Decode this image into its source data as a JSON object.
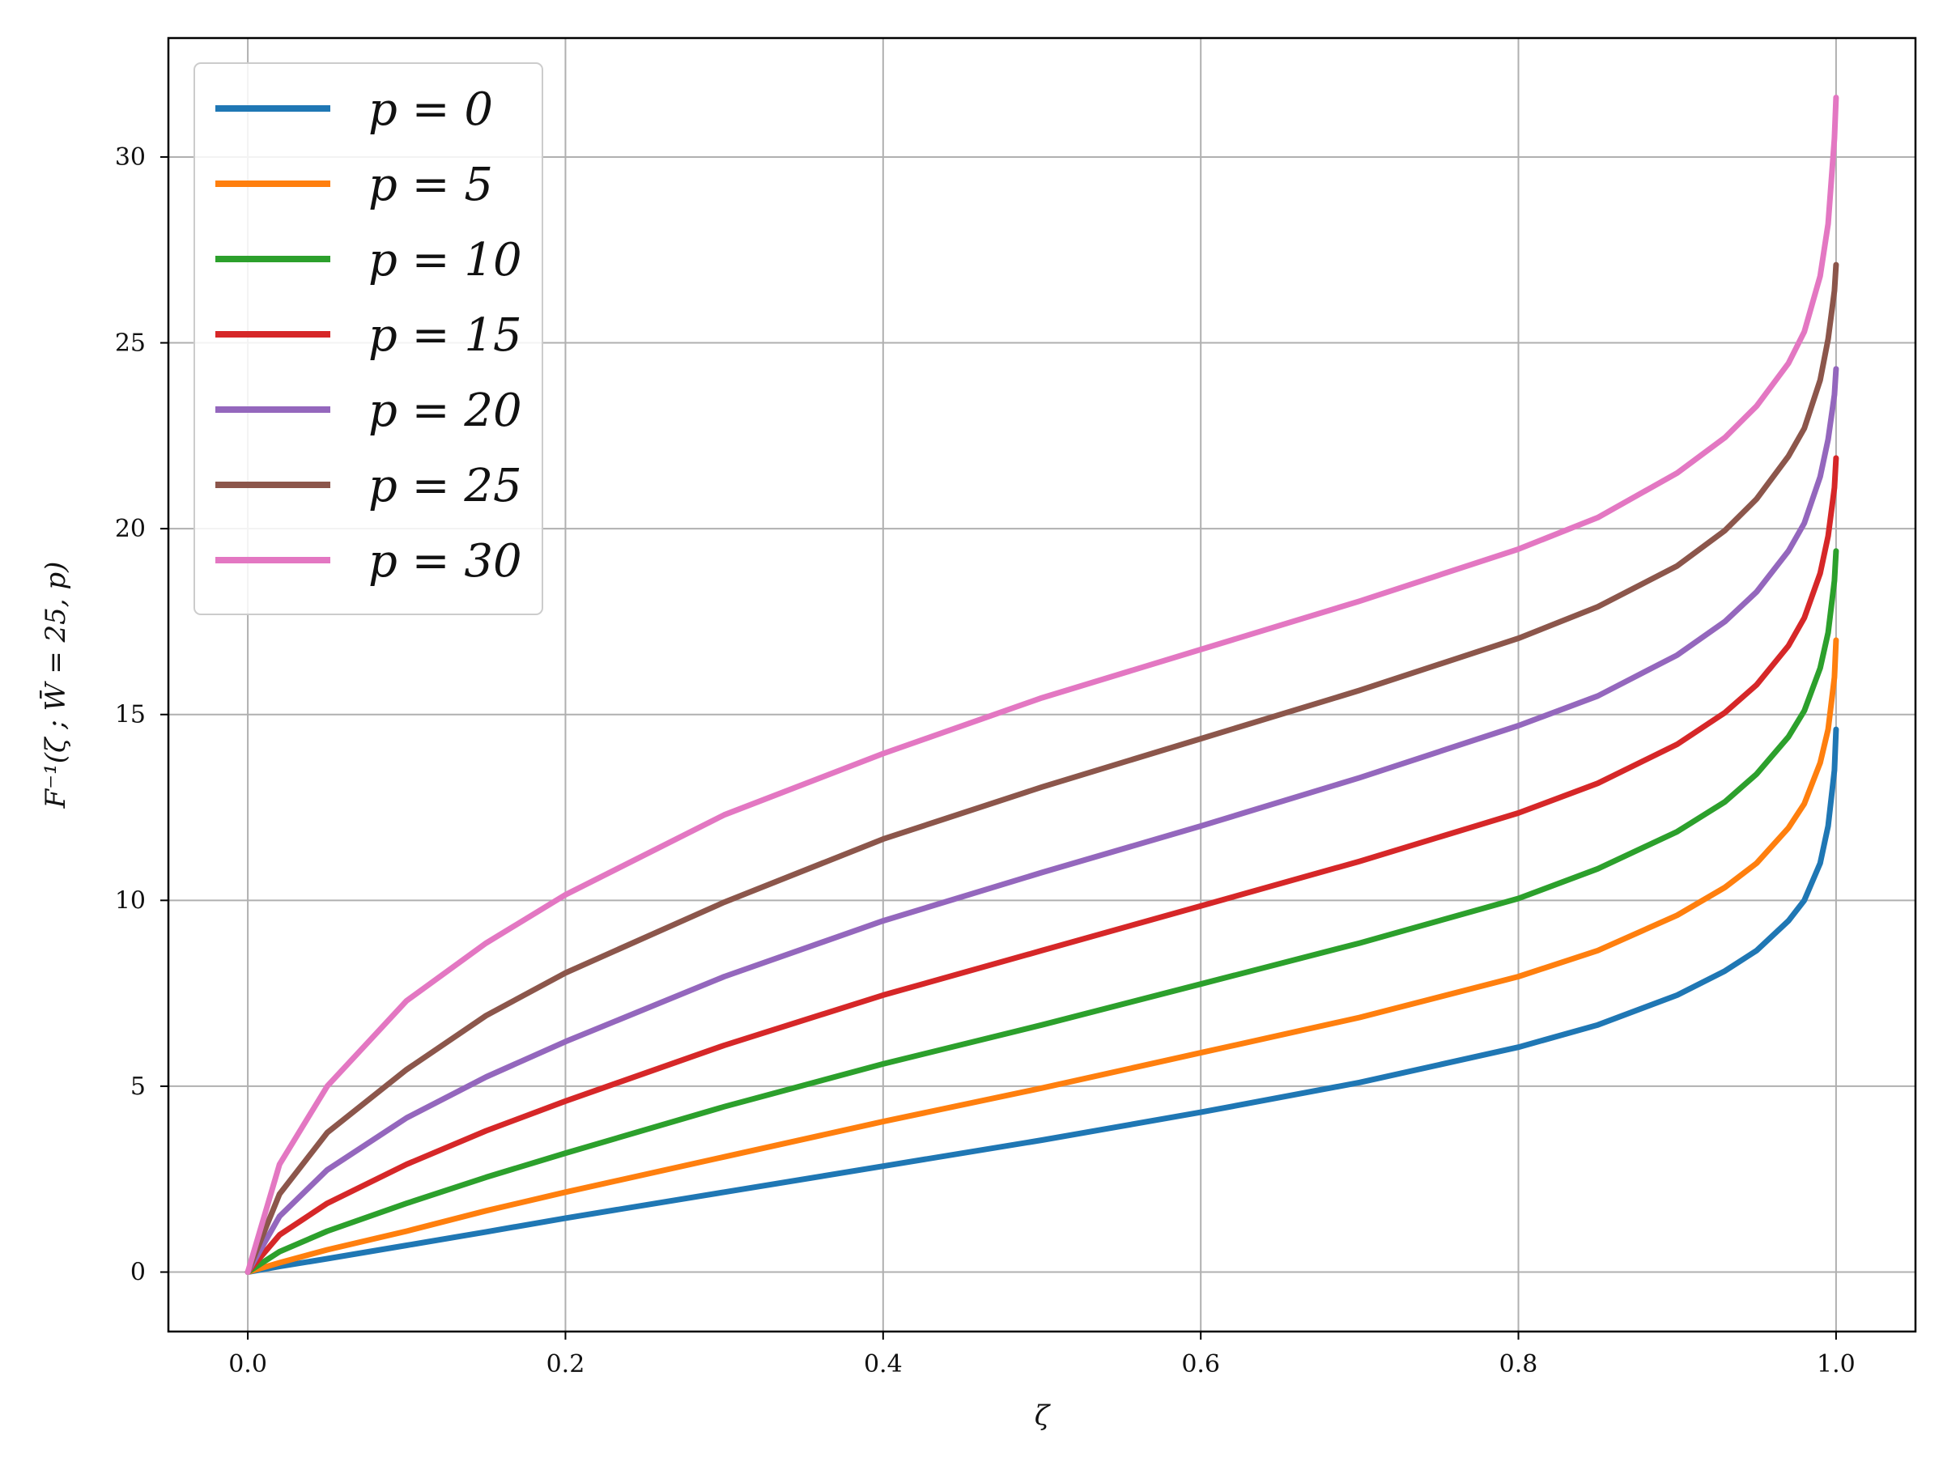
{
  "chart_data": {
    "type": "line",
    "xlabel": "ζ",
    "ylabel": "F⁻¹(ζ ; W̄ = 25, p)",
    "xlim": [
      -0.05,
      1.05
    ],
    "ylim": [
      -1.6,
      33.2
    ],
    "x_ticks": [
      0.0,
      0.2,
      0.4,
      0.6,
      0.8,
      1.0
    ],
    "x_tick_labels": [
      "0.0",
      "0.2",
      "0.4",
      "0.6",
      "0.8",
      "1.0"
    ],
    "y_ticks": [
      0,
      5,
      10,
      15,
      20,
      25,
      30
    ],
    "y_tick_labels": [
      "0",
      "5",
      "10",
      "15",
      "20",
      "25",
      "30"
    ],
    "grid": true,
    "legend_position": "top-left",
    "x": [
      0.0,
      0.02,
      0.05,
      0.1,
      0.15,
      0.2,
      0.3,
      0.4,
      0.5,
      0.6,
      0.7,
      0.8,
      0.85,
      0.9,
      0.93,
      0.95,
      0.97,
      0.98,
      0.99,
      0.995,
      0.999,
      1.0
    ],
    "series": [
      {
        "name": "p = 0",
        "color": "#1f77b4",
        "values": [
          0.0,
          0.15,
          0.36,
          0.72,
          1.08,
          1.45,
          2.15,
          2.85,
          3.55,
          4.3,
          5.1,
          6.05,
          6.65,
          7.45,
          8.1,
          8.65,
          9.45,
          10.0,
          11.0,
          12.0,
          13.5,
          14.6
        ]
      },
      {
        "name": "p = 5",
        "color": "#ff7f0e",
        "values": [
          0.0,
          0.25,
          0.6,
          1.1,
          1.65,
          2.15,
          3.1,
          4.05,
          4.95,
          5.9,
          6.85,
          7.95,
          8.65,
          9.6,
          10.35,
          11.0,
          11.95,
          12.6,
          13.7,
          14.6,
          16.0,
          17.0
        ]
      },
      {
        "name": "p = 10",
        "color": "#2ca02c",
        "values": [
          0.0,
          0.55,
          1.1,
          1.85,
          2.55,
          3.2,
          4.45,
          5.6,
          6.65,
          7.75,
          8.85,
          10.05,
          10.85,
          11.85,
          12.65,
          13.4,
          14.4,
          15.1,
          16.25,
          17.2,
          18.6,
          19.4
        ]
      },
      {
        "name": "p = 15",
        "color": "#d62728",
        "values": [
          0.0,
          1.0,
          1.85,
          2.9,
          3.8,
          4.6,
          6.1,
          7.45,
          8.65,
          9.85,
          11.05,
          12.35,
          13.15,
          14.2,
          15.05,
          15.8,
          16.85,
          17.6,
          18.8,
          19.8,
          21.1,
          21.9
        ]
      },
      {
        "name": "p = 20",
        "color": "#9467bd",
        "values": [
          0.0,
          1.5,
          2.75,
          4.15,
          5.25,
          6.2,
          7.95,
          9.45,
          10.75,
          12.0,
          13.3,
          14.7,
          15.5,
          16.6,
          17.5,
          18.3,
          19.4,
          20.15,
          21.4,
          22.4,
          23.6,
          24.3
        ]
      },
      {
        "name": "p = 25",
        "color": "#8c564b",
        "values": [
          0.0,
          2.1,
          3.75,
          5.45,
          6.9,
          8.05,
          9.95,
          11.65,
          13.05,
          14.35,
          15.65,
          17.05,
          17.9,
          19.0,
          19.95,
          20.8,
          21.95,
          22.7,
          24.0,
          25.1,
          26.4,
          27.1
        ]
      },
      {
        "name": "p = 30",
        "color": "#e377c2",
        "values": [
          0.0,
          2.9,
          5.0,
          7.3,
          8.85,
          10.15,
          12.3,
          13.95,
          15.45,
          16.75,
          18.05,
          19.45,
          20.3,
          21.5,
          22.45,
          23.3,
          24.45,
          25.3,
          26.8,
          28.2,
          30.5,
          31.6
        ]
      }
    ]
  }
}
